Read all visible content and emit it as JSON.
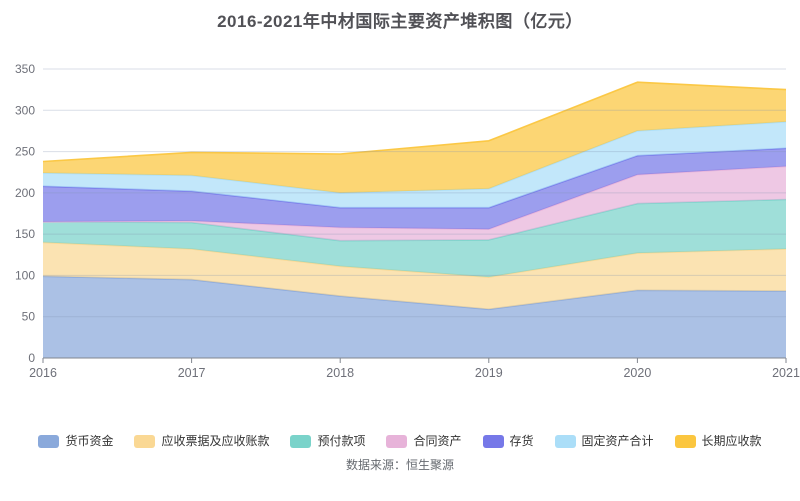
{
  "chart_data": {
    "type": "area",
    "stacked": true,
    "title": "2016-2021年中材国际主要资产堆积图（亿元）",
    "source": "数据来源：恒生聚源",
    "x": [
      "2016",
      "2017",
      "2018",
      "2019",
      "2020",
      "2021"
    ],
    "y_ticks": [
      0,
      50,
      100,
      150,
      200,
      250,
      300,
      350
    ],
    "ylim": [
      0,
      350
    ],
    "grid": true,
    "legend_position": "bottom",
    "series": [
      {
        "name": "货币资金",
        "color": "#8AA9DB",
        "values": [
          99,
          95,
          75,
          59,
          82,
          81
        ]
      },
      {
        "name": "应收票据及应收账款",
        "color": "#FAD894",
        "values": [
          41,
          37,
          36,
          39,
          45,
          51
        ]
      },
      {
        "name": "预付款项",
        "color": "#7AD3CA",
        "values": [
          25,
          32,
          31,
          45,
          60,
          60
        ]
      },
      {
        "name": "合同资产",
        "color": "#E7B3D9",
        "values": [
          0,
          2,
          16,
          13,
          35,
          40
        ]
      },
      {
        "name": "存货",
        "color": "#7678E8",
        "values": [
          43,
          36,
          24,
          26,
          23,
          22
        ]
      },
      {
        "name": "固定资产合计",
        "color": "#ABDEF8",
        "values": [
          16,
          19,
          18,
          23,
          30,
          32
        ]
      },
      {
        "name": "长期应收款",
        "color": "#FBC63F",
        "values": [
          14,
          28,
          47,
          58,
          59,
          39
        ]
      }
    ],
    "colors": {
      "axis_label": "#6E7079",
      "axis_line": "#81868F",
      "gridline": "rgba(130,145,175,0.30)",
      "title_text": "#515156",
      "legend_text": "#333333",
      "source_text": "#666a70"
    }
  }
}
